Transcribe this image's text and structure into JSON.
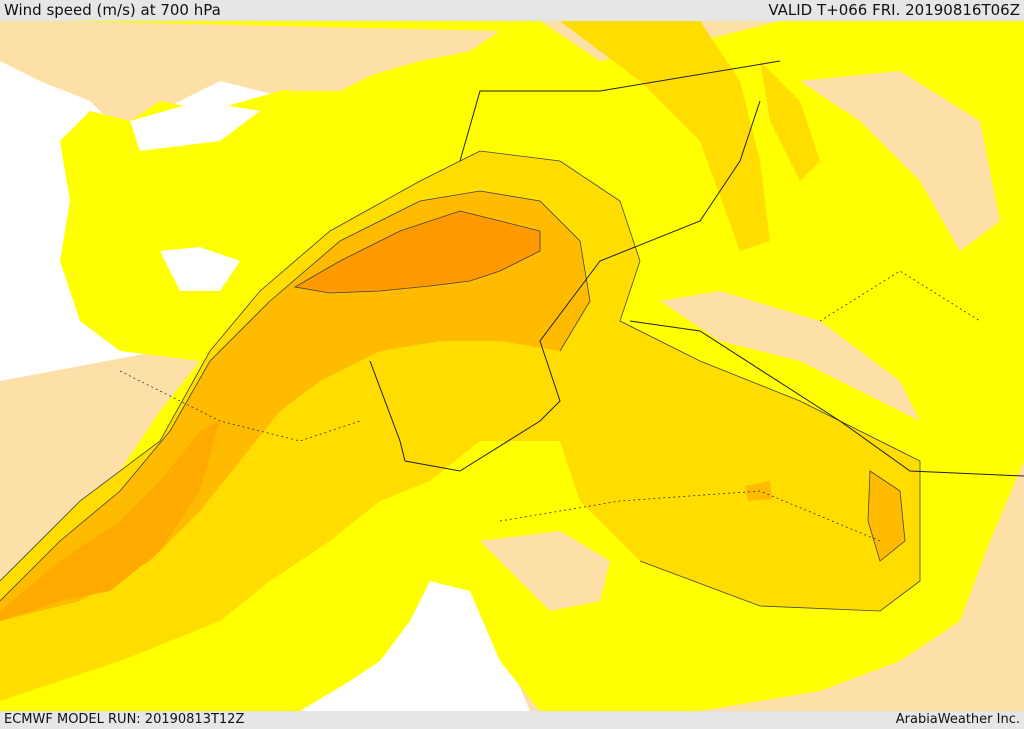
{
  "header": {
    "title": "Wind speed (m/s) at 700 hPa",
    "valid": "VALID T+066 FRI. 20190816T06Z"
  },
  "footer": {
    "model_run": "ECMWF MODEL RUN: 20190813T12Z",
    "credit": "ArabiaWeather Inc."
  },
  "colors": {
    "sea": "#ffffff",
    "land": "#fde0a8",
    "wind_level_1": "#ffff00",
    "wind_level_2": "#ffdd00",
    "wind_level_3": "#ffbb00",
    "wind_level_4": "#ff9900"
  }
}
